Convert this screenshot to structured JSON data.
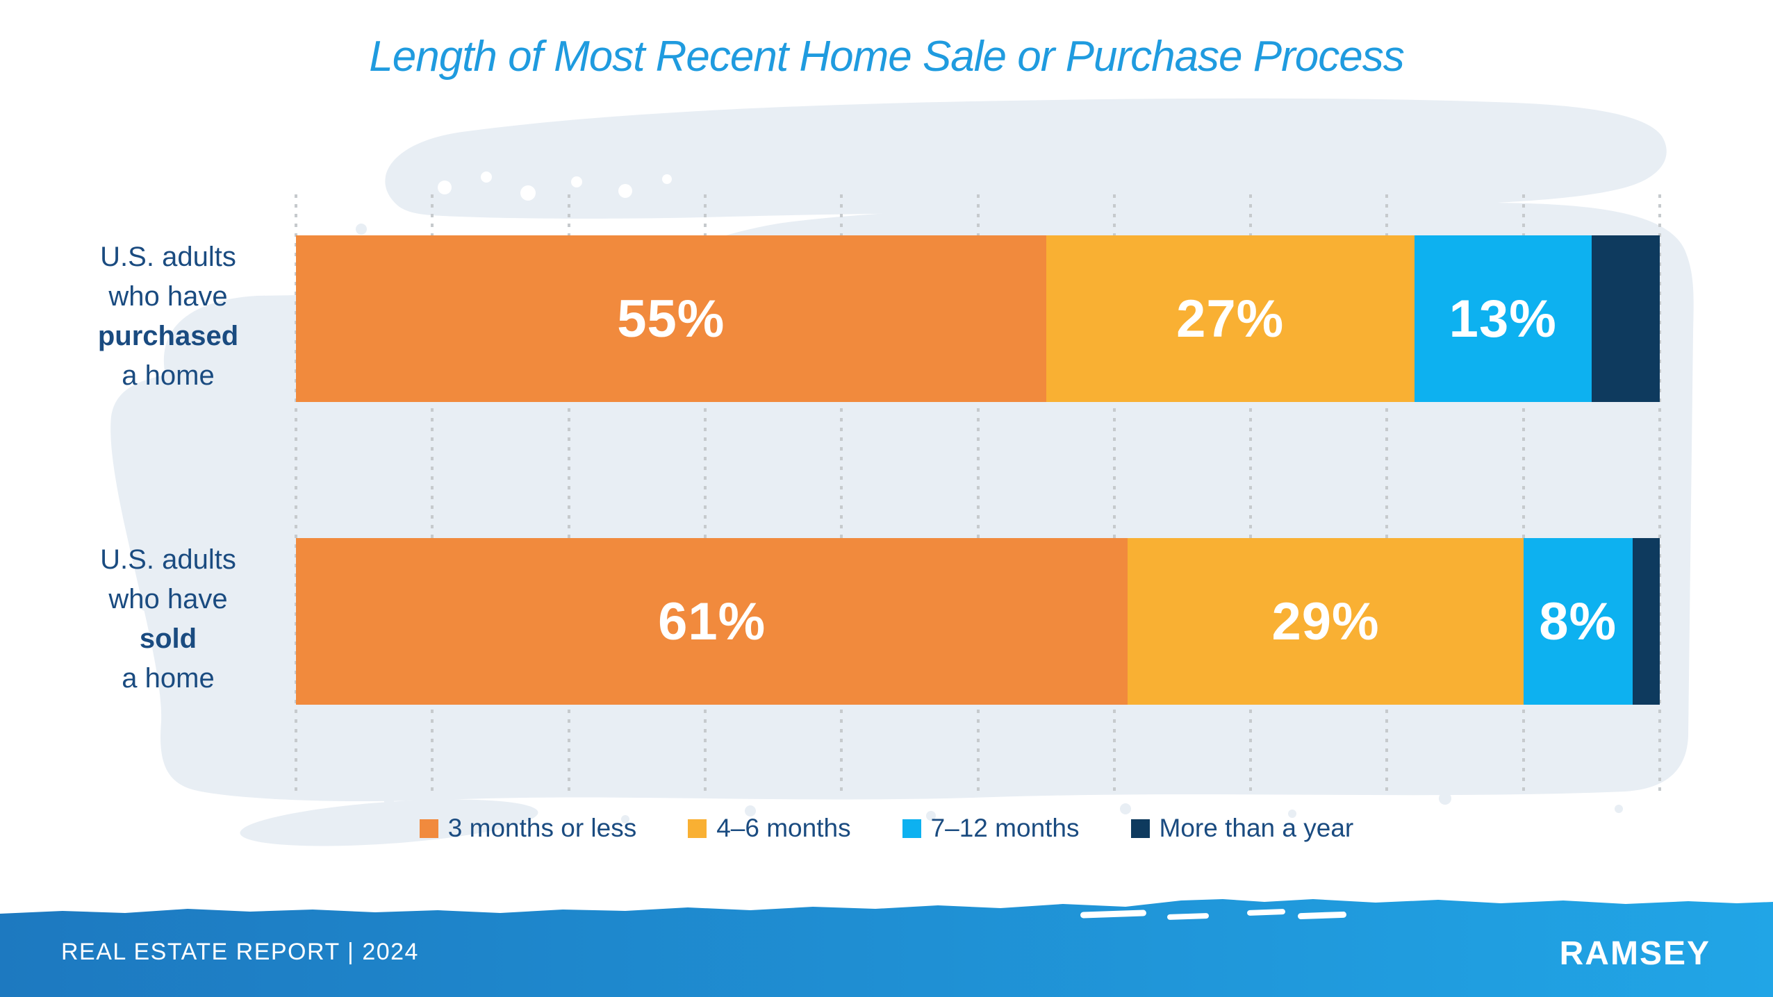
{
  "title": "Length of Most Recent Home Sale or Purchase Process",
  "chart_data": {
    "type": "bar",
    "orientation": "horizontal",
    "stacked": true,
    "title": "Length of Most Recent Home Sale or Purchase Process",
    "categories": [
      "U.S. adults who have purchased a home",
      "U.S. adults who have sold a home"
    ],
    "series": [
      {
        "name": "3 months or less",
        "color": "#f18a3d",
        "values": [
          55,
          61
        ]
      },
      {
        "name": "4–6 months",
        "color": "#f9b033",
        "values": [
          27,
          29
        ]
      },
      {
        "name": "7–12 months",
        "color": "#0db1f0",
        "values": [
          13,
          8
        ]
      },
      {
        "name": "More than a year",
        "color": "#0e3a5e",
        "values": [
          5,
          2
        ]
      }
    ],
    "bar_labels": [
      [
        "55%",
        "27%",
        "13%",
        ""
      ],
      [
        "61%",
        "29%",
        "8%",
        ""
      ]
    ],
    "xlim": [
      0,
      100
    ],
    "gridlines": "vertical dotted lines every 10%",
    "legend_position": "bottom"
  },
  "rows": [
    {
      "line1": "U.S. adults",
      "line2": "who have",
      "line3": "purchased",
      "line4": "a home"
    },
    {
      "line1": "U.S. adults",
      "line2": "who have",
      "line3": "sold",
      "line4": "a home"
    }
  ],
  "footer": {
    "report": "REAL ESTATE REPORT | 2024",
    "brand": "RAMSEY"
  },
  "colors": {
    "title_blue": "#1f9bdf",
    "label_navy": "#1a4b80",
    "wash": "#e8eef4",
    "gridline": "#c6cacd",
    "footer_left": "#1d79c0",
    "footer_right": "#21a5e6",
    "bar_label_text": "#ffffff"
  }
}
